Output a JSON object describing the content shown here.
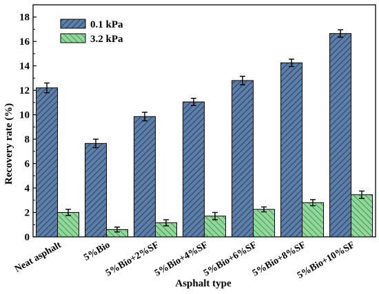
{
  "chart_data": {
    "type": "bar",
    "xlabel": "Asphalt type",
    "ylabel": "Recovery rate (%)",
    "ylim": [
      0,
      19
    ],
    "yticks": [
      0,
      2,
      4,
      6,
      8,
      10,
      12,
      14,
      16,
      18
    ],
    "categories": [
      "Neat asphalt",
      "5%Bio",
      "5%Bio+2%SF",
      "5%Bio+4%SF",
      "5%Bio+6%SF",
      "5%Bio+8%SF",
      "5%Bio+10%SF"
    ],
    "series": [
      {
        "name": "0.1 kPa",
        "color": "#5b7fa8",
        "values": [
          12.2,
          7.65,
          9.85,
          11.05,
          12.8,
          14.25,
          16.65
        ],
        "errors": [
          0.4,
          0.35,
          0.35,
          0.3,
          0.35,
          0.3,
          0.3
        ]
      },
      {
        "name": "3.2 kPa",
        "color": "#8ed99a",
        "values": [
          2.0,
          0.6,
          1.15,
          1.7,
          2.25,
          2.8,
          3.45
        ],
        "errors": [
          0.25,
          0.2,
          0.25,
          0.3,
          0.2,
          0.25,
          0.3
        ]
      }
    ],
    "legend_position": "top-left",
    "grid": false
  }
}
